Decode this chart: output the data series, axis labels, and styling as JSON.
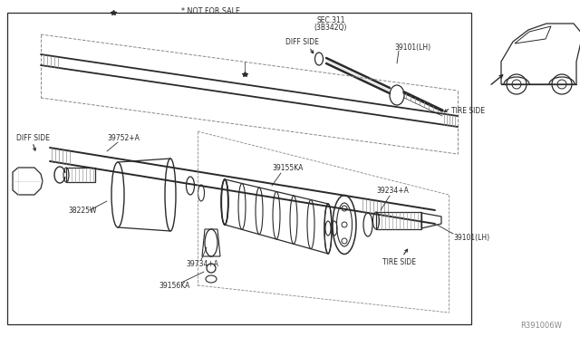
{
  "bg_color": "#ffffff",
  "lc": "#2a2a2a",
  "gray": "#888888",
  "lgray": "#cccccc",
  "ref": "R391006W",
  "not_for_sale": "* NOT FOR SALE",
  "sec311": "SEC.311\n(3B342Q)",
  "labels": {
    "diff_top": "DIFF SIDE",
    "diff_left": "DIFF SIDE",
    "tire_top": "TIRE SIDE",
    "tire_bot": "TIRE SIDE",
    "p39101_top": "39101(LH)",
    "p39101_bot": "39101(LH)",
    "p39752": "39752+A",
    "p38225": "38225W",
    "p39155": "39155KA",
    "p39234": "39234+A",
    "p39734": "39734+A",
    "p39156": "39156KA"
  },
  "fs": 5.5,
  "fs_ref": 6.0
}
